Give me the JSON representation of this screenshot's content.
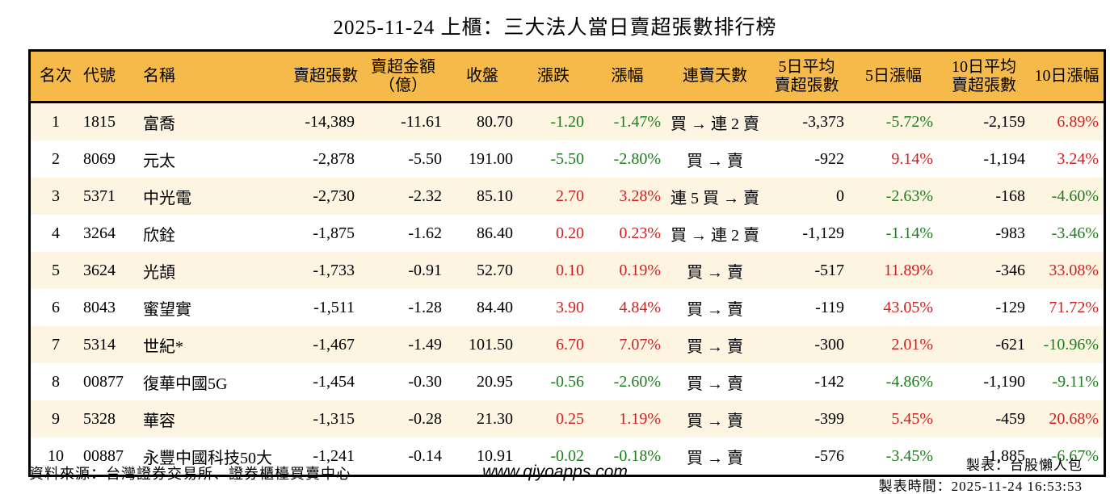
{
  "title": "2025-11-24 上櫃：三大法人當日賣超張數排行榜",
  "colors": {
    "up": "#cc2222",
    "down": "#1e7d1e",
    "header_bg": "#f6ba4a",
    "row_odd": "#fdf4e1",
    "border": "#000000"
  },
  "chart_data": {
    "type": "table",
    "title": "2025-11-24 上櫃：三大法人當日賣超張數排行榜",
    "columns": [
      {
        "key": "rank",
        "label": "名次",
        "align": "center",
        "width": 60
      },
      {
        "key": "code",
        "label": "代號",
        "align": "left",
        "width": 70
      },
      {
        "key": "name",
        "label": "名稱",
        "align": "left",
        "width": 183
      },
      {
        "key": "sell_volume",
        "label": "賣超張數",
        "align": "right",
        "width": 82
      },
      {
        "key": "sell_amount",
        "label": "賣超金額\n（億）",
        "align": "right",
        "width": 106
      },
      {
        "key": "close",
        "label": "收盤",
        "align": "right",
        "width": 86
      },
      {
        "key": "change",
        "label": "漲跌",
        "align": "right",
        "width": 86
      },
      {
        "key": "change_pct",
        "label": "漲幅",
        "align": "right",
        "width": 93
      },
      {
        "key": "streak",
        "label": "連賣天數",
        "align": "center",
        "width": 120
      },
      {
        "key": "avg5",
        "label": "5日平均\n賣超張數",
        "align": "right",
        "width": 103
      },
      {
        "key": "pct5",
        "label": "5日漲幅",
        "align": "right",
        "width": 108
      },
      {
        "key": "avg10",
        "label": "10日平均\n賣超張數",
        "align": "right",
        "width": 112
      },
      {
        "key": "pct10",
        "label": "10日漲幅",
        "align": "right",
        "width": 89
      }
    ],
    "rows": [
      {
        "rank": "1",
        "code": "1815",
        "name": "富喬",
        "sell_volume": "-14,389",
        "sell_amount": "-11.61",
        "close": "80.70",
        "change": {
          "t": "-1.20",
          "c": "down"
        },
        "change_pct": {
          "t": "-1.47%",
          "c": "down"
        },
        "streak": "買 → 連 2 賣",
        "avg5": "-3,373",
        "pct5": {
          "t": "-5.72%",
          "c": "down"
        },
        "avg10": "-2,159",
        "pct10": {
          "t": "6.89%",
          "c": "up"
        }
      },
      {
        "rank": "2",
        "code": "8069",
        "name": "元太",
        "sell_volume": "-2,878",
        "sell_amount": "-5.50",
        "close": "191.00",
        "change": {
          "t": "-5.50",
          "c": "down"
        },
        "change_pct": {
          "t": "-2.80%",
          "c": "down"
        },
        "streak": "買 → 賣",
        "avg5": "-922",
        "pct5": {
          "t": "9.14%",
          "c": "up"
        },
        "avg10": "-1,194",
        "pct10": {
          "t": "3.24%",
          "c": "up"
        }
      },
      {
        "rank": "3",
        "code": "5371",
        "name": "中光電",
        "sell_volume": "-2,730",
        "sell_amount": "-2.32",
        "close": "85.10",
        "change": {
          "t": "2.70",
          "c": "up"
        },
        "change_pct": {
          "t": "3.28%",
          "c": "up"
        },
        "streak": "連 5 買 → 賣",
        "avg5": "0",
        "pct5": {
          "t": "-2.63%",
          "c": "down"
        },
        "avg10": "-168",
        "pct10": {
          "t": "-4.60%",
          "c": "down"
        }
      },
      {
        "rank": "4",
        "code": "3264",
        "name": "欣銓",
        "sell_volume": "-1,875",
        "sell_amount": "-1.62",
        "close": "86.40",
        "change": {
          "t": "0.20",
          "c": "up"
        },
        "change_pct": {
          "t": "0.23%",
          "c": "up"
        },
        "streak": "買 → 連 2 賣",
        "avg5": "-1,129",
        "pct5": {
          "t": "-1.14%",
          "c": "down"
        },
        "avg10": "-983",
        "pct10": {
          "t": "-3.46%",
          "c": "down"
        }
      },
      {
        "rank": "5",
        "code": "3624",
        "name": "光頡",
        "sell_volume": "-1,733",
        "sell_amount": "-0.91",
        "close": "52.70",
        "change": {
          "t": "0.10",
          "c": "up"
        },
        "change_pct": {
          "t": "0.19%",
          "c": "up"
        },
        "streak": "買 → 賣",
        "avg5": "-517",
        "pct5": {
          "t": "11.89%",
          "c": "up"
        },
        "avg10": "-346",
        "pct10": {
          "t": "33.08%",
          "c": "up"
        }
      },
      {
        "rank": "6",
        "code": "8043",
        "name": "蜜望實",
        "sell_volume": "-1,511",
        "sell_amount": "-1.28",
        "close": "84.40",
        "change": {
          "t": "3.90",
          "c": "up"
        },
        "change_pct": {
          "t": "4.84%",
          "c": "up"
        },
        "streak": "買 → 賣",
        "avg5": "-119",
        "pct5": {
          "t": "43.05%",
          "c": "up"
        },
        "avg10": "-129",
        "pct10": {
          "t": "71.72%",
          "c": "up"
        }
      },
      {
        "rank": "7",
        "code": "5314",
        "name": "世紀*",
        "sell_volume": "-1,467",
        "sell_amount": "-1.49",
        "close": "101.50",
        "change": {
          "t": "6.70",
          "c": "up"
        },
        "change_pct": {
          "t": "7.07%",
          "c": "up"
        },
        "streak": "買 → 賣",
        "avg5": "-300",
        "pct5": {
          "t": "2.01%",
          "c": "up"
        },
        "avg10": "-621",
        "pct10": {
          "t": "-10.96%",
          "c": "down"
        }
      },
      {
        "rank": "8",
        "code": "00877",
        "name": "復華中國5G",
        "sell_volume": "-1,454",
        "sell_amount": "-0.30",
        "close": "20.95",
        "change": {
          "t": "-0.56",
          "c": "down"
        },
        "change_pct": {
          "t": "-2.60%",
          "c": "down"
        },
        "streak": "買 → 賣",
        "avg5": "-142",
        "pct5": {
          "t": "-4.86%",
          "c": "down"
        },
        "avg10": "-1,190",
        "pct10": {
          "t": "-9.11%",
          "c": "down"
        }
      },
      {
        "rank": "9",
        "code": "5328",
        "name": "華容",
        "sell_volume": "-1,315",
        "sell_amount": "-0.28",
        "close": "21.30",
        "change": {
          "t": "0.25",
          "c": "up"
        },
        "change_pct": {
          "t": "1.19%",
          "c": "up"
        },
        "streak": "買 → 賣",
        "avg5": "-399",
        "pct5": {
          "t": "5.45%",
          "c": "up"
        },
        "avg10": "-459",
        "pct10": {
          "t": "20.68%",
          "c": "up"
        }
      },
      {
        "rank": "10",
        "code": "00887",
        "name": "永豐中國科技50大",
        "sell_volume": "-1,241",
        "sell_amount": "-0.14",
        "close": "10.91",
        "change": {
          "t": "-0.02",
          "c": "down"
        },
        "change_pct": {
          "t": "-0.18%",
          "c": "down"
        },
        "streak": "買 → 賣",
        "avg5": "-576",
        "pct5": {
          "t": "-3.45%",
          "c": "down"
        },
        "avg10": "-1,885",
        "pct10": {
          "t": "-6.67%",
          "c": "down"
        }
      }
    ]
  },
  "footer": {
    "source": "資料來源：台灣證券交易所、證券櫃檯買賣中心",
    "site": "www.qiyoapps.com",
    "made_by": "製表：台股懶人包",
    "made_time": "製表時間：2025-11-24 16:53:53"
  }
}
